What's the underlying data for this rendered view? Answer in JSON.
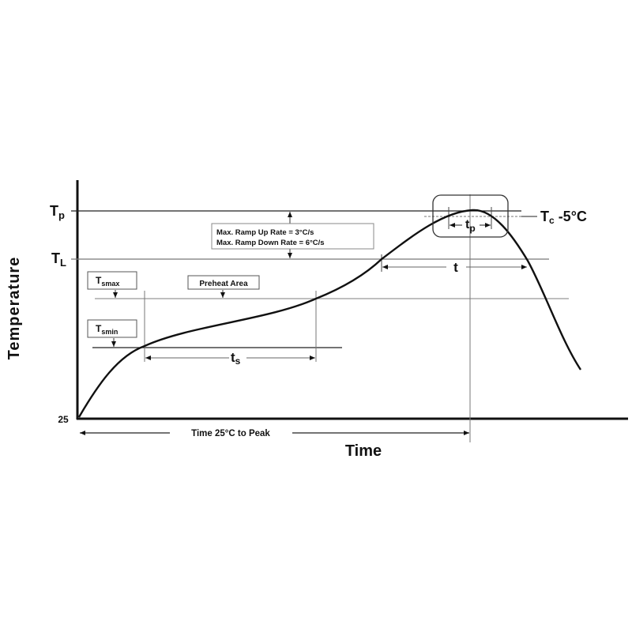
{
  "axes": {
    "y_label": "Temperature",
    "x_label": "Time",
    "y_origin": "25"
  },
  "levels": {
    "tp": {
      "main": "T",
      "sub": "p"
    },
    "tl": {
      "main": "T",
      "sub": "L"
    },
    "tsmax": {
      "main": "T",
      "sub": "smax"
    },
    "tsmin": {
      "main": "T",
      "sub": "smin"
    },
    "tc": {
      "main": "T",
      "sub": "c",
      "suffix": " -5°C"
    }
  },
  "annotations": {
    "ramp_up": "Max. Ramp Up Rate = 3°C/s",
    "ramp_down": "Max. Ramp Down Rate = 6°C/s",
    "preheat": "Preheat Area",
    "ts": {
      "main": "t",
      "sub": "s"
    },
    "t": "t",
    "tp": {
      "main": "t",
      "sub": "p"
    },
    "time_to_peak": "Time 25°C to Peak"
  },
  "colors": {
    "line": "#111111",
    "guide": "#888888"
  }
}
